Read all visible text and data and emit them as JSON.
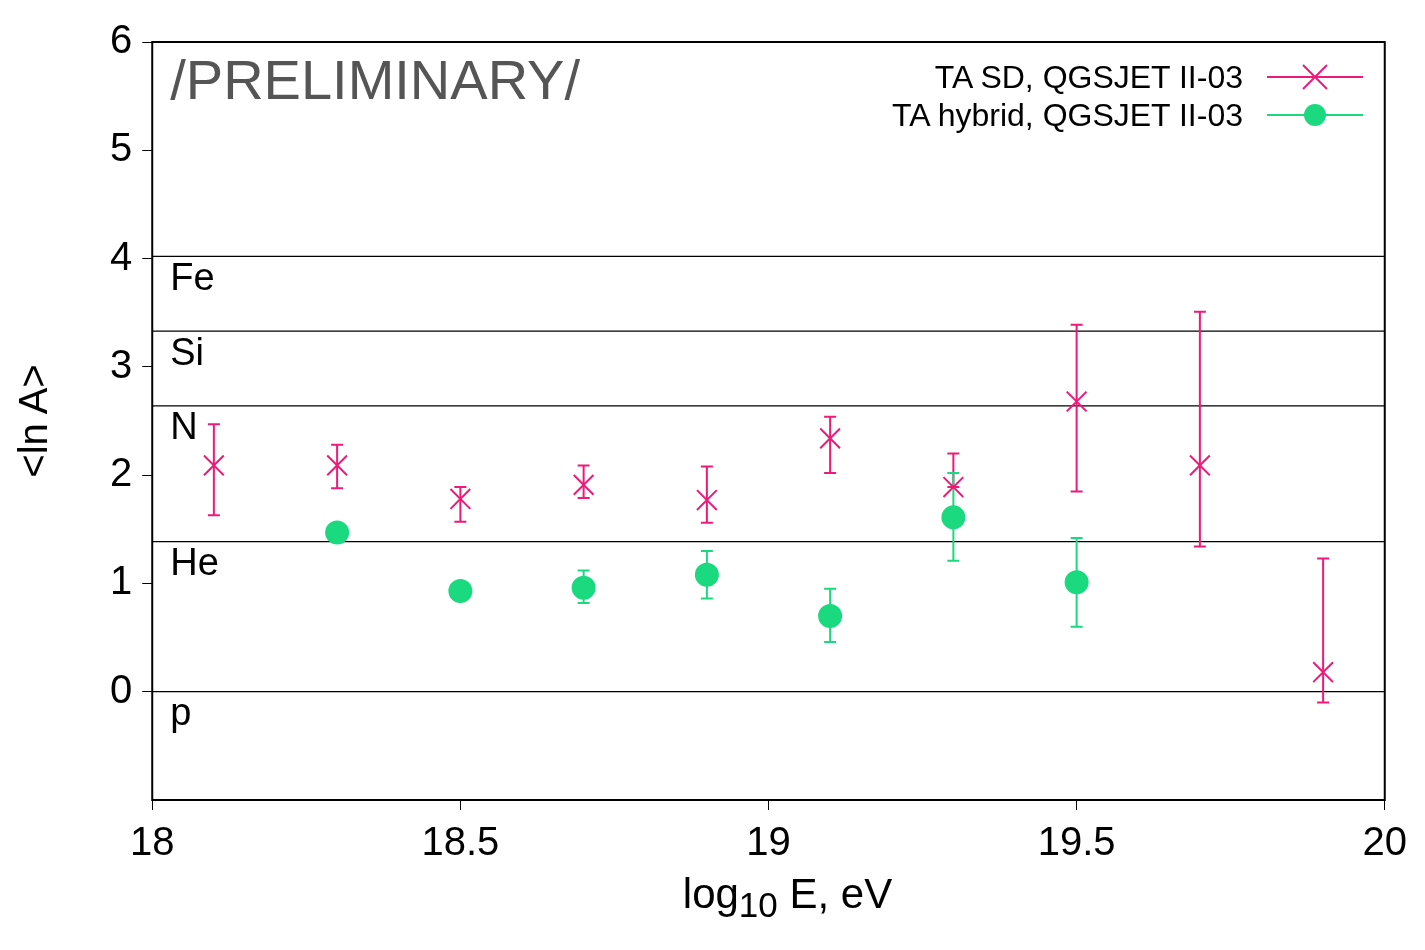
{
  "chart_data": {
    "type": "scatter",
    "xlabel": "log$_{10}$ E, eV",
    "ylabel": "<ln A>",
    "xlim": [
      18,
      20
    ],
    "xticks": [
      18,
      18.5,
      19,
      19.5,
      20
    ],
    "ylim": [
      -1,
      6
    ],
    "yticks": [
      0,
      1,
      2,
      3,
      4,
      5,
      6
    ],
    "grid": false,
    "legend": "top right",
    "annotations": [
      "/PRELIMINARY/"
    ],
    "ref_lines": [
      {
        "axis": "y",
        "value": 4.02,
        "label": "Fe",
        "color": "#000000"
      },
      {
        "axis": "y",
        "value": 3.33,
        "label": "Si",
        "color": "#000000"
      },
      {
        "axis": "y",
        "value": 2.64,
        "label": "N",
        "color": "#000000"
      },
      {
        "axis": "y",
        "value": 1.386,
        "label": "He",
        "color": "#000000"
      },
      {
        "axis": "y",
        "value": 0,
        "label": "p",
        "color": "#000000"
      }
    ],
    "series": [
      {
        "name": "TA SD, QGSJET II-03",
        "marker": "cross",
        "color": "#ee1a78",
        "x": [
          18.1,
          18.3,
          18.5,
          18.7,
          18.9,
          19.1,
          19.3,
          19.5,
          19.7,
          19.9
        ],
        "values": [
          2.09,
          2.09,
          1.78,
          1.91,
          1.77,
          2.34,
          1.89,
          2.68,
          2.09,
          0.18
        ],
        "errors": [
          [
            1.63,
            2.47
          ],
          [
            1.88,
            2.28
          ],
          [
            1.57,
            1.89
          ],
          [
            1.79,
            2.09
          ],
          [
            1.56,
            2.08
          ],
          [
            2.02,
            2.54
          ],
          [
            1.89,
            2.2
          ],
          [
            1.85,
            3.39
          ],
          [
            1.34,
            3.51
          ],
          [
            -0.1,
            1.23
          ]
        ]
      },
      {
        "name": "TA hybrid, QGSJET II-03",
        "marker": "circle",
        "color": "#1ad97e",
        "x": [
          18.3,
          18.5,
          18.7,
          18.9,
          19.1,
          19.3,
          19.5
        ],
        "values": [
          1.47,
          0.93,
          0.96,
          1.08,
          0.7,
          1.61,
          1.01
        ],
        "errors": [
          null,
          null,
          [
            0.82,
            1.12
          ],
          [
            0.86,
            1.3
          ],
          [
            0.46,
            0.95
          ],
          [
            1.21,
            2.02
          ],
          [
            0.6,
            1.42
          ]
        ]
      }
    ]
  }
}
